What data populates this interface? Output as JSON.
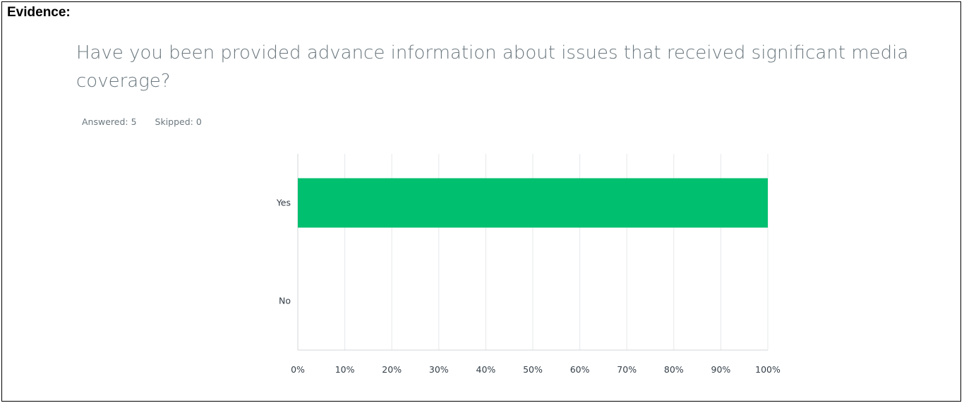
{
  "header": {
    "label": "Evidence:"
  },
  "question": {
    "title": "Have you been provided advance information about issues that received significant media coverage?",
    "answered": "Answered: 5",
    "skipped": "Skipped: 0"
  },
  "colors": {
    "bar": "#00bf6f",
    "grid": "#e6e8ea",
    "axis": "#d0d4d7"
  },
  "chart_data": {
    "type": "bar",
    "orientation": "horizontal",
    "categories": [
      "Yes",
      "No"
    ],
    "values": [
      100,
      0
    ],
    "xlim": [
      0,
      100
    ],
    "xticks": [
      "0%",
      "10%",
      "20%",
      "30%",
      "40%",
      "50%",
      "60%",
      "70%",
      "80%",
      "90%",
      "100%"
    ],
    "grid": true
  }
}
